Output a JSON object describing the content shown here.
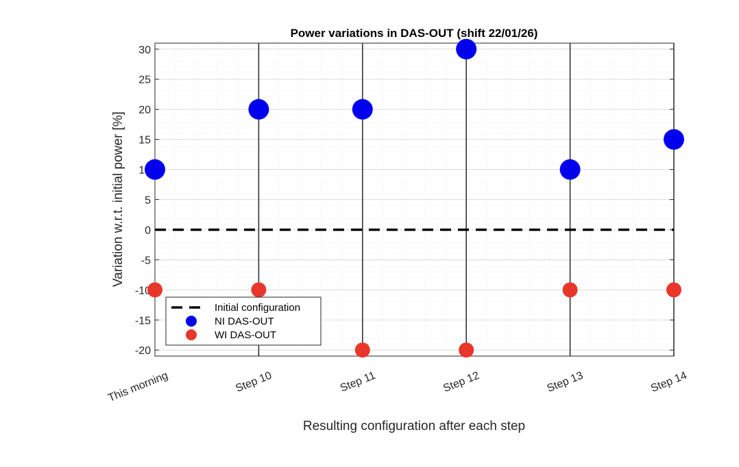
{
  "chart_data": {
    "type": "scatter",
    "title": "Power variations in DAS-OUT (shift 22/01/26)",
    "xlabel": "Resulting configuration after each step",
    "ylabel": "Variation w.r.t. initial power [%]",
    "categories": [
      "This morning",
      "Step 10",
      "Step 11",
      "Step 12",
      "Step 13",
      "Step 14"
    ],
    "ylim": [
      -21,
      31
    ],
    "yticks": [
      30,
      25,
      20,
      15,
      10,
      5,
      0,
      -5,
      -10,
      -15,
      -20
    ],
    "grid": true,
    "minor_grid": true,
    "vertical_step_lines": [
      "Step 10",
      "Step 11",
      "Step 12",
      "Step 13",
      "Step 14"
    ],
    "reference_line": {
      "name": "Initial configuration",
      "value": 0,
      "style": "dashed",
      "color": "#000000"
    },
    "series": [
      {
        "name": "NI DAS-OUT",
        "color": "#0000ee",
        "values": [
          10,
          20,
          20,
          30,
          10,
          15
        ]
      },
      {
        "name": "WI DAS-OUT",
        "color": "#e8372a",
        "values": [
          -10,
          -10,
          -20,
          -20,
          -10,
          -10
        ]
      }
    ],
    "legend": {
      "position": "bottom-left",
      "entries": [
        "Initial configuration",
        "NI DAS-OUT",
        "WI DAS-OUT"
      ]
    }
  }
}
